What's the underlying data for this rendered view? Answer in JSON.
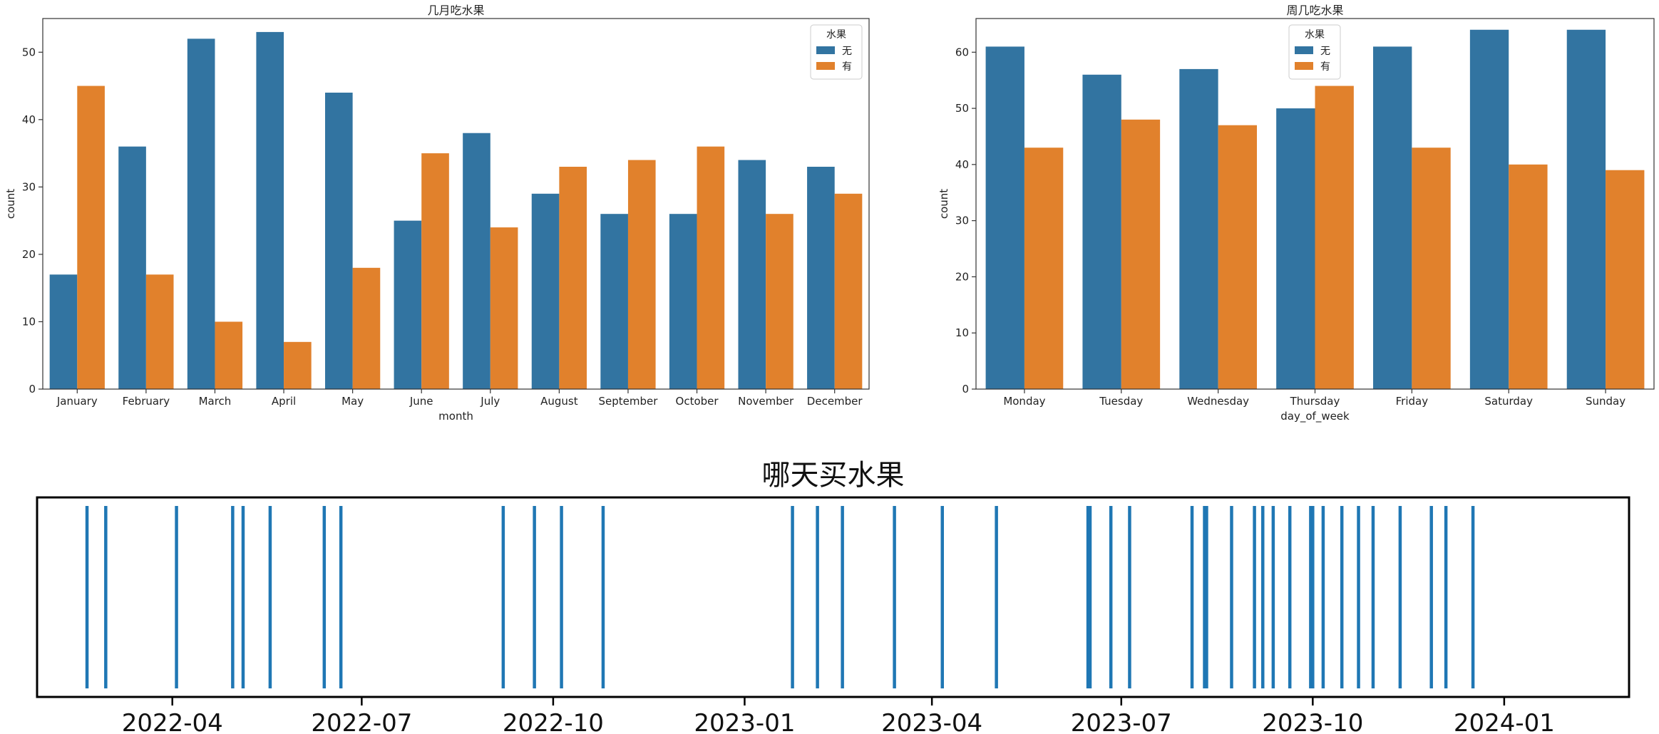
{
  "colors": {
    "none": "#3274a1",
    "has": "#e1812c",
    "axis": "#333333"
  },
  "chart_data": [
    {
      "id": "month_chart",
      "type": "bar",
      "title": "几月吃水果",
      "xlabel": "month",
      "ylabel": "count",
      "ylim": [
        0,
        55
      ],
      "yticks": [
        0,
        10,
        20,
        30,
        40,
        50
      ],
      "categories": [
        "January",
        "February",
        "March",
        "April",
        "May",
        "June",
        "July",
        "August",
        "September",
        "October",
        "November",
        "December"
      ],
      "legend": {
        "title": "水果",
        "placement": "top-right"
      },
      "series": [
        {
          "name": "无",
          "color": "#3274a1",
          "values": [
            17,
            36,
            52,
            53,
            44,
            25,
            38,
            29,
            26,
            26,
            34,
            33
          ]
        },
        {
          "name": "有",
          "color": "#e1812c",
          "values": [
            45,
            17,
            10,
            7,
            18,
            35,
            24,
            33,
            34,
            36,
            26,
            29
          ]
        }
      ]
    },
    {
      "id": "weekday_chart",
      "type": "bar",
      "title": "周几吃水果",
      "xlabel": "day_of_week",
      "ylabel": "count",
      "ylim": [
        0,
        66
      ],
      "yticks": [
        0,
        10,
        20,
        30,
        40,
        50,
        60
      ],
      "categories": [
        "Monday",
        "Tuesday",
        "Wednesday",
        "Thursday",
        "Friday",
        "Saturday",
        "Sunday"
      ],
      "legend": {
        "title": "水果",
        "placement": "top-left"
      },
      "series": [
        {
          "name": "无",
          "color": "#3274a1",
          "values": [
            61,
            56,
            57,
            50,
            61,
            64,
            64
          ]
        },
        {
          "name": "有",
          "color": "#e1812c",
          "values": [
            43,
            48,
            47,
            54,
            43,
            40,
            39
          ]
        }
      ]
    },
    {
      "id": "purchase_chart",
      "type": "event",
      "title": "哪天买水果",
      "xlim": [
        "2022-01-26",
        "2024-03-01"
      ],
      "xticks": [
        "2022-04",
        "2022-07",
        "2022-10",
        "2023-01",
        "2023-04",
        "2023-07",
        "2023-10",
        "2024-01"
      ],
      "color": "#1f77b4",
      "events": [
        "2022-02-19",
        "2022-02-28",
        "2022-04-03",
        "2022-04-30",
        "2022-05-05",
        "2022-05-18",
        "2022-06-13",
        "2022-06-21",
        "2022-09-07",
        "2022-09-22",
        "2022-10-05",
        "2022-10-25",
        "2023-01-24",
        "2023-02-05",
        "2023-02-17",
        "2023-03-14",
        "2023-04-06",
        "2023-05-02",
        "2023-06-15",
        "2023-06-16",
        "2023-06-26",
        "2023-07-05",
        "2023-08-04",
        "2023-08-10",
        "2023-08-11",
        "2023-08-23",
        "2023-09-03",
        "2023-09-07",
        "2023-09-12",
        "2023-09-20",
        "2023-09-30",
        "2023-10-01",
        "2023-10-06",
        "2023-10-15",
        "2023-10-23",
        "2023-10-30",
        "2023-11-12",
        "2023-11-27",
        "2023-12-04",
        "2023-12-17"
      ]
    }
  ]
}
